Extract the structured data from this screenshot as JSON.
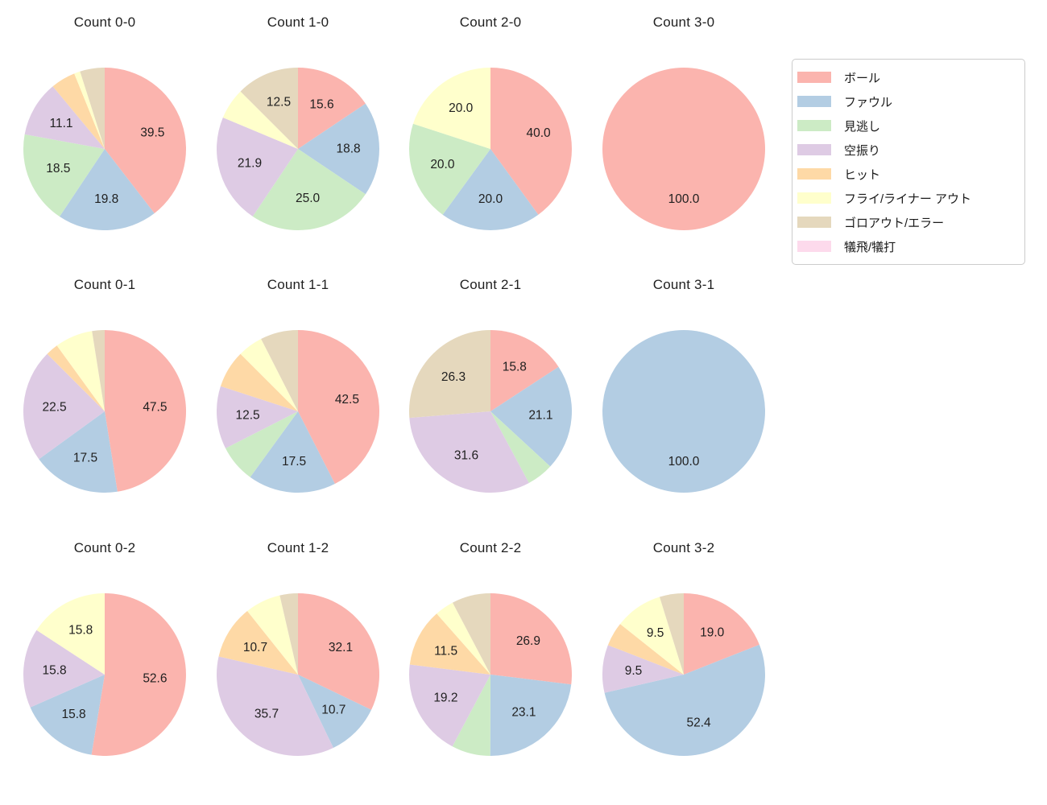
{
  "figure": {
    "background_color": "#ffffff",
    "text_color": "#1f1f1f"
  },
  "legend": {
    "position": "upper right",
    "items": [
      {
        "label": "ボール",
        "color": "#fbb4ae"
      },
      {
        "label": "ファウル",
        "color": "#b3cde3"
      },
      {
        "label": "見逃し",
        "color": "#ccebc5"
      },
      {
        "label": "空振り",
        "color": "#decbe4"
      },
      {
        "label": "ヒット",
        "color": "#fed9a6"
      },
      {
        "label": "フライ/ライナー アウト",
        "color": "#ffffcc"
      },
      {
        "label": "ゴロアウト/エラー",
        "color": "#e5d8bd"
      },
      {
        "label": "犠飛/犠打",
        "color": "#fddaec"
      }
    ]
  },
  "chart_data": [
    {
      "type": "pie",
      "title": "Count 0-0",
      "grid": {
        "row": 0,
        "col": 0
      },
      "start_angle_deg": 90,
      "direction": "clockwise",
      "labels": [
        "ボール",
        "ファウル",
        "見逃し",
        "空振り",
        "ヒット",
        "フライ/ライナー アウト",
        "ゴロアウト/エラー"
      ],
      "values": [
        39.5,
        19.8,
        18.5,
        11.1,
        4.9,
        1.2,
        4.9
      ],
      "shown_value_labels": [
        "39.5",
        "19.8",
        "18.5",
        "11.1"
      ]
    },
    {
      "type": "pie",
      "title": "Count 1-0",
      "grid": {
        "row": 0,
        "col": 1
      },
      "start_angle_deg": 90,
      "direction": "clockwise",
      "labels": [
        "ボール",
        "ファウル",
        "見逃し",
        "空振り",
        "フライ/ライナー アウト",
        "ゴロアウト/エラー"
      ],
      "values": [
        15.6,
        18.8,
        25.0,
        21.9,
        6.2,
        12.5
      ],
      "shown_value_labels": [
        "15.6",
        "18.8",
        "25.0",
        "21.9",
        "12.5"
      ]
    },
    {
      "type": "pie",
      "title": "Count 2-0",
      "grid": {
        "row": 0,
        "col": 2
      },
      "start_angle_deg": 90,
      "direction": "clockwise",
      "labels": [
        "ボール",
        "ファウル",
        "見逃し",
        "フライ/ライナー アウト"
      ],
      "values": [
        40.0,
        20.0,
        20.0,
        20.0
      ],
      "shown_value_labels": [
        "40.0",
        "20.0",
        "20.0",
        "20.0"
      ]
    },
    {
      "type": "pie",
      "title": "Count 3-0",
      "grid": {
        "row": 0,
        "col": 3
      },
      "start_angle_deg": 90,
      "direction": "clockwise",
      "labels": [
        "ボール"
      ],
      "values": [
        100.0
      ],
      "shown_value_labels": [
        "100.0"
      ]
    },
    {
      "type": "pie",
      "title": "Count 0-1",
      "grid": {
        "row": 1,
        "col": 0
      },
      "start_angle_deg": 90,
      "direction": "clockwise",
      "labels": [
        "ボール",
        "ファウル",
        "空振り",
        "ヒット",
        "フライ/ライナー アウト",
        "ゴロアウト/エラー"
      ],
      "values": [
        47.5,
        17.5,
        22.5,
        2.5,
        7.5,
        2.5
      ],
      "shown_value_labels": [
        "47.5",
        "17.5",
        "22.5"
      ]
    },
    {
      "type": "pie",
      "title": "Count 1-1",
      "grid": {
        "row": 1,
        "col": 1
      },
      "start_angle_deg": 90,
      "direction": "clockwise",
      "labels": [
        "ボール",
        "ファウル",
        "見逃し",
        "空振り",
        "ヒット",
        "フライ/ライナー アウト",
        "ゴロアウト/エラー"
      ],
      "values": [
        42.5,
        17.5,
        7.5,
        12.5,
        7.5,
        5.0,
        7.5
      ],
      "shown_value_labels": [
        "42.5",
        "17.5",
        "12.5"
      ]
    },
    {
      "type": "pie",
      "title": "Count 2-1",
      "grid": {
        "row": 1,
        "col": 2
      },
      "start_angle_deg": 90,
      "direction": "clockwise",
      "labels": [
        "ボール",
        "ファウル",
        "見逃し",
        "空振り",
        "ゴロアウト/エラー"
      ],
      "values": [
        15.8,
        21.1,
        5.3,
        31.6,
        26.3
      ],
      "shown_value_labels": [
        "15.8",
        "21.1",
        "31.6",
        "26.3"
      ]
    },
    {
      "type": "pie",
      "title": "Count 3-1",
      "grid": {
        "row": 1,
        "col": 3
      },
      "start_angle_deg": 90,
      "direction": "clockwise",
      "labels": [
        "ファウル"
      ],
      "values": [
        100.0
      ],
      "shown_value_labels": [
        "100.0"
      ]
    },
    {
      "type": "pie",
      "title": "Count 0-2",
      "grid": {
        "row": 2,
        "col": 0
      },
      "start_angle_deg": 90,
      "direction": "clockwise",
      "labels": [
        "ボール",
        "ファウル",
        "空振り",
        "フライ/ライナー アウト"
      ],
      "values": [
        52.6,
        15.8,
        15.8,
        15.8
      ],
      "shown_value_labels": [
        "52.6",
        "15.8",
        "15.8",
        "15.8"
      ]
    },
    {
      "type": "pie",
      "title": "Count 1-2",
      "grid": {
        "row": 2,
        "col": 1
      },
      "start_angle_deg": 90,
      "direction": "clockwise",
      "labels": [
        "ボール",
        "ファウル",
        "空振り",
        "ヒット",
        "フライ/ライナー アウト",
        "ゴロアウト/エラー"
      ],
      "values": [
        32.1,
        10.7,
        35.7,
        10.7,
        7.1,
        3.6
      ],
      "shown_value_labels": [
        "32.1",
        "10.7",
        "35.7",
        "10.7"
      ]
    },
    {
      "type": "pie",
      "title": "Count 2-2",
      "grid": {
        "row": 2,
        "col": 2
      },
      "start_angle_deg": 90,
      "direction": "clockwise",
      "labels": [
        "ボール",
        "ファウル",
        "見逃し",
        "空振り",
        "ヒット",
        "フライ/ライナー アウト",
        "ゴロアウト/エラー"
      ],
      "values": [
        26.9,
        23.1,
        7.7,
        19.2,
        11.5,
        3.8,
        7.7
      ],
      "shown_value_labels": [
        "26.9",
        "23.1",
        "19.2",
        "11.5"
      ]
    },
    {
      "type": "pie",
      "title": "Count 3-2",
      "grid": {
        "row": 2,
        "col": 3
      },
      "start_angle_deg": 90,
      "direction": "clockwise",
      "labels": [
        "ボール",
        "ファウル",
        "空振り",
        "ヒット",
        "フライ/ライナー アウト",
        "ゴロアウト/エラー"
      ],
      "values": [
        19.0,
        52.4,
        9.5,
        4.8,
        9.5,
        4.8
      ],
      "shown_value_labels": [
        "19.0",
        "52.4",
        "9.5",
        "9.5"
      ]
    }
  ]
}
